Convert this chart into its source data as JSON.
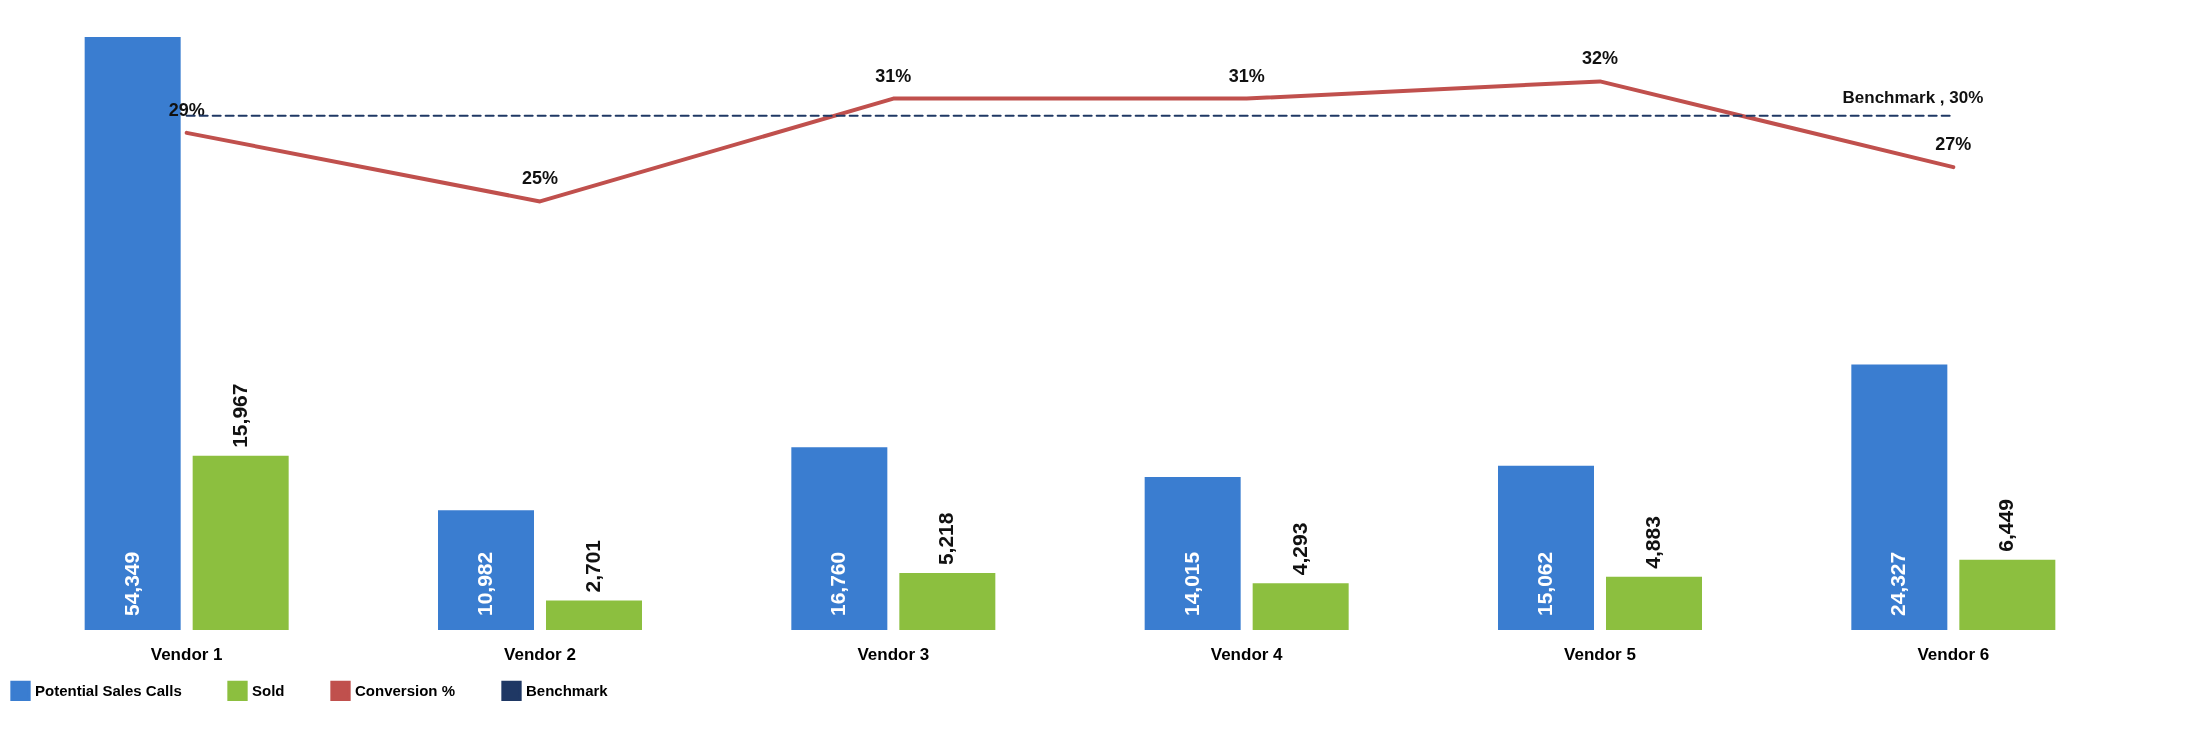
{
  "chart_data": {
    "type": "bar",
    "categories": [
      "Vendor 1",
      "Vendor 2",
      "Vendor 3",
      "Vendor 4",
      "Vendor 5",
      "Vendor 6"
    ],
    "series": [
      {
        "name": "Potential Sales Calls",
        "color": "#3a7dd0",
        "values": [
          54349,
          10982,
          16760,
          14015,
          15062,
          24327
        ],
        "value_labels": [
          "54,349",
          "10,982",
          "16,760",
          "14,015",
          "15,062",
          "24,327"
        ]
      },
      {
        "name": "Sold",
        "color": "#8cbf3f",
        "values": [
          15967,
          2701,
          5218,
          4293,
          4883,
          6449
        ],
        "value_labels": [
          "15,967",
          "2,701",
          "5,218",
          "4,293",
          "4,883",
          "6,449"
        ]
      },
      {
        "name": "Conversion %",
        "type": "line",
        "axis": "y2",
        "color": "#c0504d",
        "line_style": "solid",
        "values": [
          29,
          25,
          31,
          31,
          32,
          27
        ],
        "value_labels": [
          "29%",
          "25%",
          "31%",
          "31%",
          "32%",
          "27%"
        ]
      },
      {
        "name": "Benchmark",
        "type": "line",
        "axis": "y2",
        "color": "#1f3864",
        "line_style": "dashed",
        "values": [
          30,
          30,
          30,
          30,
          30,
          30
        ]
      }
    ],
    "annotations": [
      "Benchmark , 30%"
    ],
    "legend": "bottom"
  }
}
